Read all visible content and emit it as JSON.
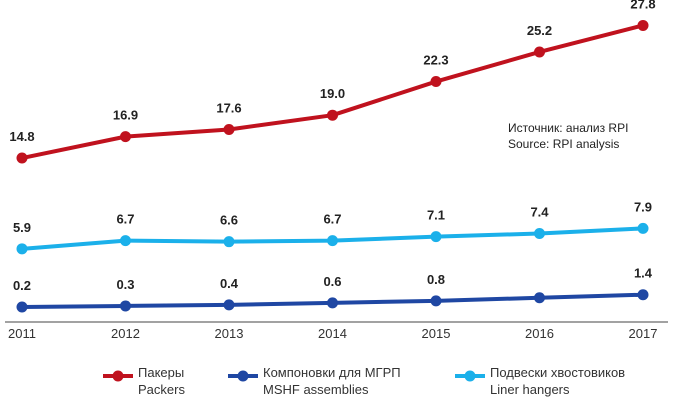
{
  "chart_data": {
    "type": "line",
    "title": "",
    "xlabel": "",
    "ylabel": "",
    "x": [
      "2011",
      "2012",
      "2013",
      "2014",
      "2015",
      "2016",
      "2017"
    ],
    "ylim": [
      0,
      28
    ],
    "grid": false,
    "legend_position": "bottom",
    "series": [
      {
        "name": "Пакеры",
        "name_en": "Packers",
        "color": "#c0121e",
        "values": [
          14.8,
          16.9,
          17.6,
          19.0,
          22.3,
          25.2,
          27.8
        ],
        "labels": [
          "14.8",
          "16.9",
          "17.6",
          "19.0",
          "22.3",
          "25.2",
          "27.8"
        ]
      },
      {
        "name": "Компоновки для МГРП",
        "name_en": "MSHF assemblies",
        "color": "#1f47a3",
        "values": [
          0.2,
          0.3,
          0.4,
          0.6,
          0.8,
          1.1,
          1.4
        ],
        "labels": [
          "0.2",
          "0.3",
          "0.4",
          "0.6",
          "0.8",
          "",
          "1.4"
        ]
      },
      {
        "name": "Подвески хвостовиков",
        "name_en": "Liner hangers",
        "color": "#1bb0ea",
        "values": [
          5.9,
          6.7,
          6.6,
          6.7,
          7.1,
          7.4,
          7.9
        ],
        "labels": [
          "5.9",
          "6.7",
          "6.6",
          "6.7",
          "7.1",
          "7.4",
          "7.9"
        ]
      }
    ],
    "annotations": [
      "Источник: анализ RPI",
      "Source: RPI analysis"
    ]
  }
}
